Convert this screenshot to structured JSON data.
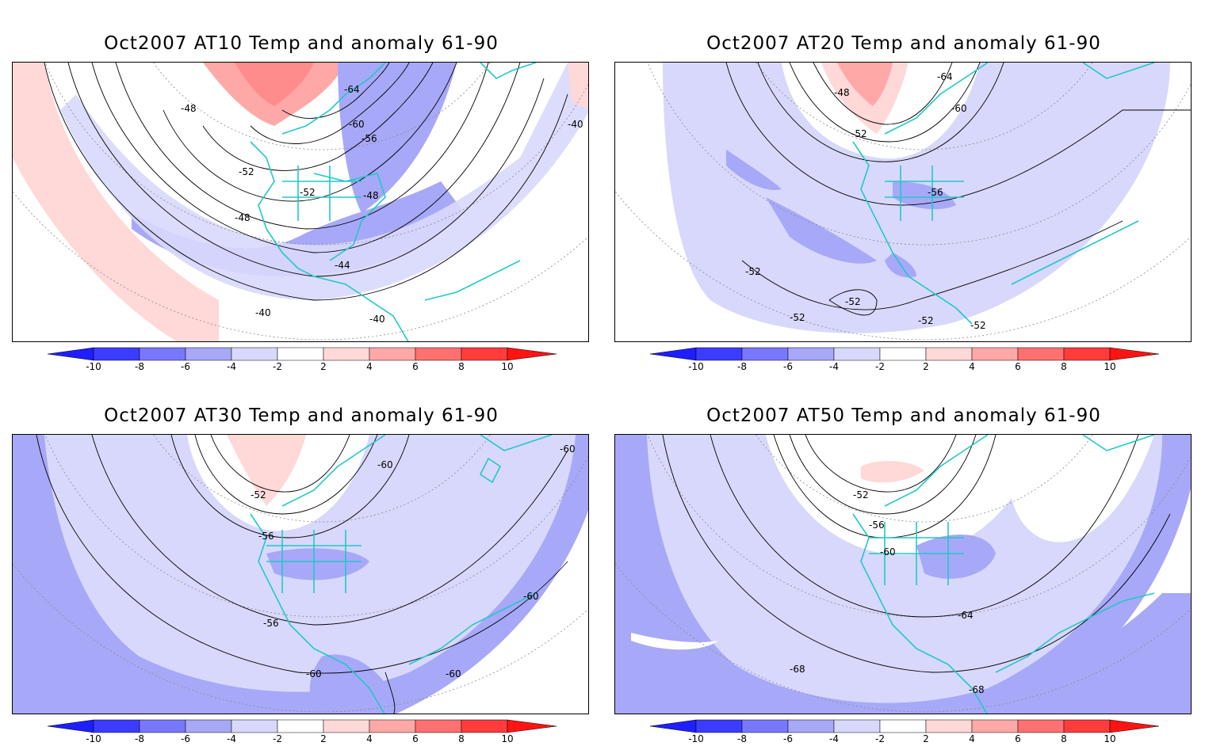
{
  "panels": [
    {
      "title": "Oct2007 AT10 Temp and anomaly 61-90",
      "contour_labels": [
        "-64",
        "-60",
        "-56",
        "-52",
        "-52",
        "-48",
        "-48",
        "-48",
        "-44",
        "-40",
        "-40",
        "-40"
      ]
    },
    {
      "title": "Oct2007 AT20 Temp and anomaly 61-90",
      "contour_labels": [
        "-64",
        "-60",
        "-56",
        "-52",
        "-48",
        "-52",
        "-52",
        "-52",
        "-52",
        "-52"
      ]
    },
    {
      "title": "Oct2007 AT30 Temp and anomaly 61-90",
      "contour_labels": [
        "-60",
        "-60",
        "-52",
        "-56",
        "-56",
        "-60",
        "-60",
        "-60"
      ]
    },
    {
      "title": "Oct2007 AT50 Temp and anomaly 61-90",
      "contour_labels": [
        "-52",
        "-56",
        "-60",
        "-64",
        "-68",
        "-68"
      ]
    }
  ],
  "colorbar": {
    "ticks": [
      "-10",
      "-8",
      "-6",
      "-4",
      "-2",
      "2",
      "4",
      "6",
      "8",
      "10"
    ],
    "colors": [
      "#1e1eff",
      "#3c3cff",
      "#7878ff",
      "#a8a8f8",
      "#d8d8fc",
      "#ffffff",
      "#ffd8d8",
      "#ffa8a8",
      "#ff7070",
      "#ff3c3c",
      "#ff1414"
    ]
  },
  "style": {
    "coast_color": "#20c8c8",
    "anomaly_blue": "#a8a8f8",
    "anomaly_red": "#ffa8a8"
  }
}
